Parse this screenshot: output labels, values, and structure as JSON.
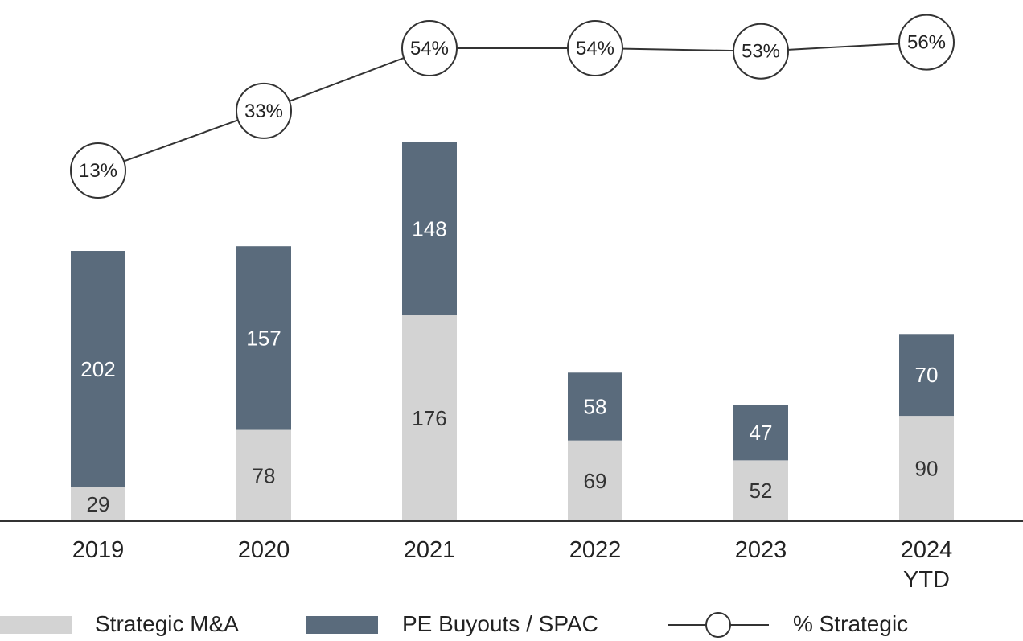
{
  "chart_data": {
    "type": "bar",
    "stacked": true,
    "categories": [
      "2019",
      "2020",
      "2021",
      "2022",
      "2023",
      [
        "2024",
        "YTD"
      ]
    ],
    "series": [
      {
        "name": "Strategic M&A",
        "values": [
          29,
          78,
          176,
          69,
          52,
          90
        ],
        "color": "#d3d3d3"
      },
      {
        "name": "PE Buyouts / SPAC",
        "values": [
          202,
          157,
          148,
          58,
          47,
          70
        ],
        "color": "#5a6b7c"
      }
    ],
    "line_series": {
      "name": "% Strategic",
      "values": [
        13,
        33,
        54,
        54,
        53,
        56
      ],
      "labels": [
        "13%",
        "33%",
        "54%",
        "54%",
        "53%",
        "56%"
      ]
    },
    "ylim": [
      0,
      330
    ],
    "grid": false,
    "legend": "bottom",
    "title": "",
    "xlabel": "",
    "ylabel": ""
  }
}
